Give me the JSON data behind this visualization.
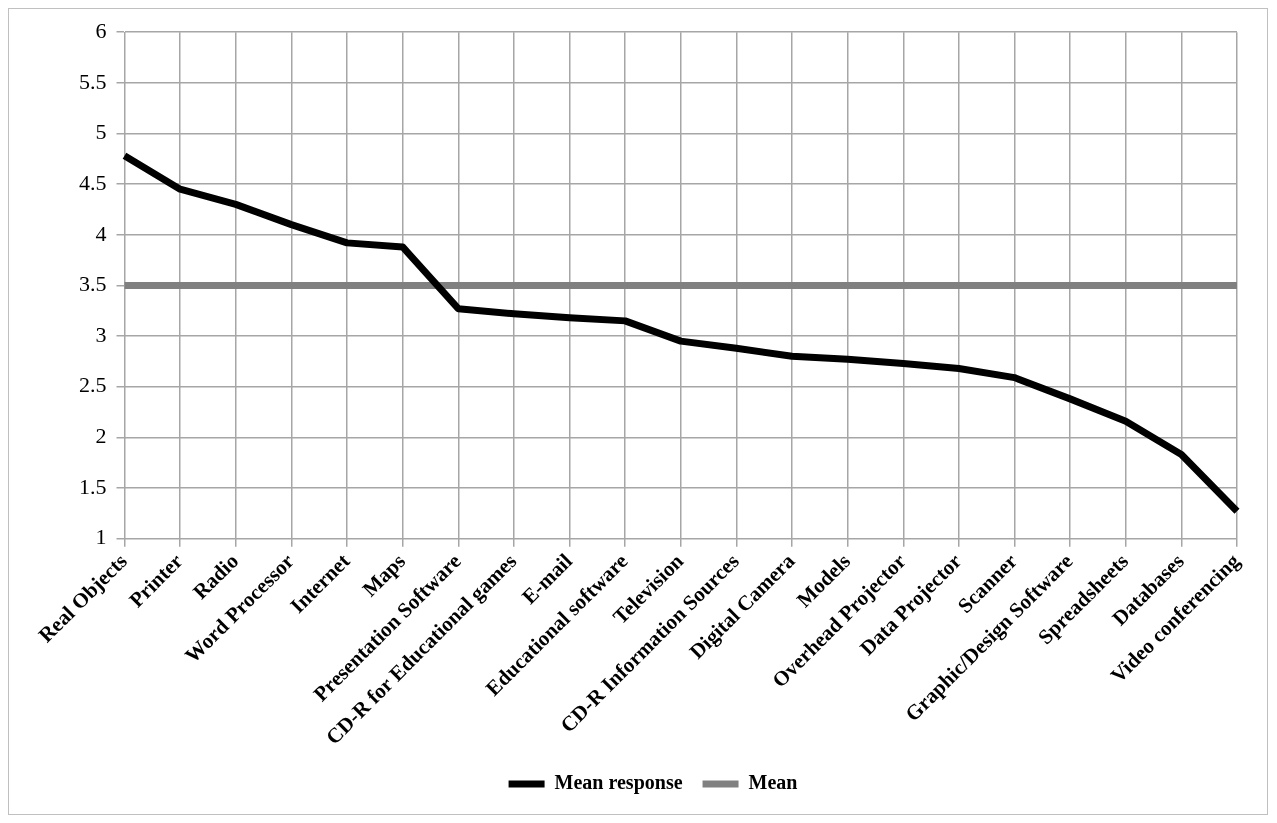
{
  "chart_data": {
    "type": "line",
    "categories": [
      "Real Objects",
      "Printer",
      "Radio",
      "Word Processor",
      "Internet",
      "Maps",
      "Presentation Software",
      "CD-R for Educational games",
      "E-mail",
      "Educational software",
      "Television",
      "CD-R Information Sources",
      "Digital Camera",
      "Models",
      "Overhead Projector",
      "Data Projector",
      "Scanner",
      "Graphic/Design Software",
      "Spreadsheets",
      "Databases",
      "Video conferencing"
    ],
    "series": [
      {
        "name": "Mean response",
        "color": "#000000",
        "values": [
          4.78,
          4.45,
          4.3,
          4.1,
          3.92,
          3.88,
          3.27,
          3.22,
          3.18,
          3.15,
          2.95,
          2.88,
          2.8,
          2.77,
          2.73,
          2.68,
          2.59,
          2.38,
          2.16,
          1.83,
          1.27
        ]
      },
      {
        "name": "Mean",
        "color": "#808080",
        "values": [
          3.5,
          3.5,
          3.5,
          3.5,
          3.5,
          3.5,
          3.5,
          3.5,
          3.5,
          3.5,
          3.5,
          3.5,
          3.5,
          3.5,
          3.5,
          3.5,
          3.5,
          3.5,
          3.5,
          3.5,
          3.5
        ]
      }
    ],
    "ylim": [
      1,
      6
    ],
    "yticks": [
      1,
      1.5,
      2,
      2.5,
      3,
      3.5,
      4,
      4.5,
      5,
      5.5,
      6
    ],
    "grid": true,
    "legend": "bottom",
    "marker": "none",
    "line_style": "solid"
  }
}
